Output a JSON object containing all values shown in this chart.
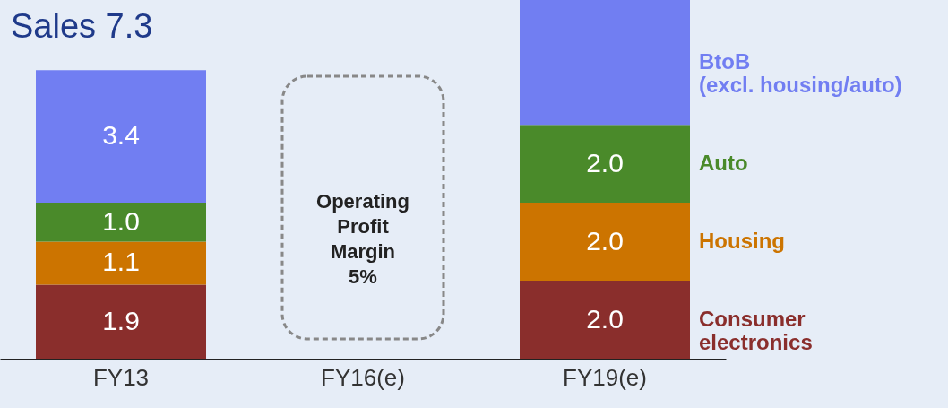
{
  "chart_data": {
    "type": "bar",
    "stacked": true,
    "title": "Sales 7.3",
    "categories": [
      "FY13",
      "FY16(e)",
      "FY19(e)"
    ],
    "series": [
      {
        "name": "Consumer\nelectronics",
        "color": "#8a2e2c",
        "values": [
          1.9,
          null,
          2.0
        ],
        "value_labels": [
          "1.9",
          null,
          "2.0"
        ]
      },
      {
        "name": "Housing",
        "color": "#cc7400",
        "values": [
          1.1,
          null,
          2.0
        ],
        "value_labels": [
          "1.1",
          null,
          "2.0"
        ]
      },
      {
        "name": "Auto",
        "color": "#4a8a2a",
        "values": [
          1.0,
          null,
          2.0
        ],
        "value_labels": [
          "1.0",
          null,
          "2.0"
        ]
      },
      {
        "name": "BtoB\n(excl. housing/auto)",
        "color": "#717ef2",
        "values": [
          3.4,
          null,
          3.2
        ],
        "value_labels": [
          "3.4",
          null,
          null
        ]
      }
    ],
    "annotations": [
      "Operating\nProfit\nMargin\n5%"
    ],
    "legend": false,
    "grid": false
  }
}
